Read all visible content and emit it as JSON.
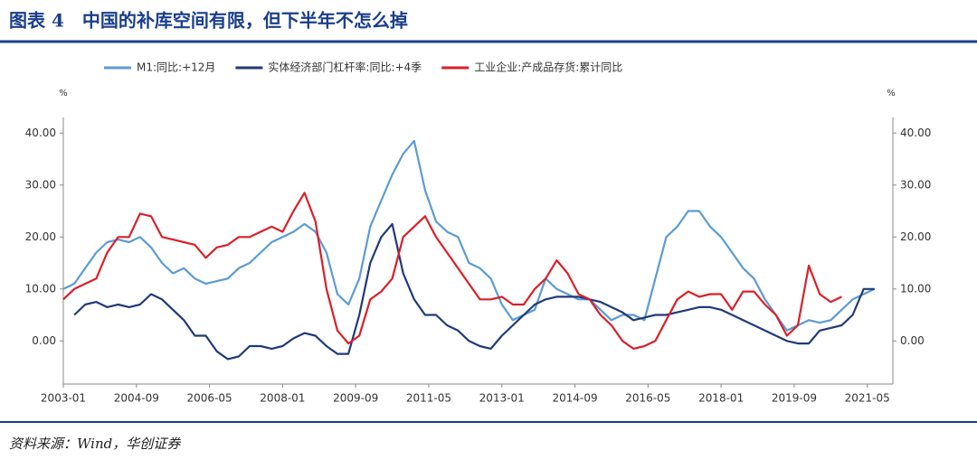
{
  "title": "图表 4　中国的补库空间有限，但下半年不怎么掉",
  "source": "资料来源：Wind，华创证券",
  "chart_data": {
    "type": "line",
    "y_unit": "%",
    "y2_unit": "%",
    "x": [
      "2003-01",
      "2003-04",
      "2003-07",
      "2003-10",
      "2004-01",
      "2004-04",
      "2004-07",
      "2004-10",
      "2005-01",
      "2005-04",
      "2005-07",
      "2005-10",
      "2006-01",
      "2006-04",
      "2006-07",
      "2006-10",
      "2007-01",
      "2007-04",
      "2007-07",
      "2007-10",
      "2008-01",
      "2008-04",
      "2008-07",
      "2008-10",
      "2009-01",
      "2009-04",
      "2009-07",
      "2009-10",
      "2010-01",
      "2010-04",
      "2010-07",
      "2010-10",
      "2011-01",
      "2011-04",
      "2011-07",
      "2011-10",
      "2012-01",
      "2012-04",
      "2012-07",
      "2012-10",
      "2013-01",
      "2013-04",
      "2013-07",
      "2013-10",
      "2014-01",
      "2014-04",
      "2014-07",
      "2014-10",
      "2015-01",
      "2015-04",
      "2015-07",
      "2015-10",
      "2016-01",
      "2016-04",
      "2016-07",
      "2016-10",
      "2017-01",
      "2017-04",
      "2017-07",
      "2017-10",
      "2018-01",
      "2018-04",
      "2018-07",
      "2018-10",
      "2019-01",
      "2019-04",
      "2019-07",
      "2019-10",
      "2020-01",
      "2020-04",
      "2020-07",
      "2020-10",
      "2021-01",
      "2021-04",
      "2021-07"
    ],
    "xlim": [
      "2003-01",
      "2021-12"
    ],
    "xticks": [
      "2003-01",
      "2004-09",
      "2006-05",
      "2008-01",
      "2009-09",
      "2011-05",
      "2013-01",
      "2014-09",
      "2016-05",
      "2018-01",
      "2019-09",
      "2021-05"
    ],
    "ylim": [
      -8.3,
      43
    ],
    "y2lim": [
      -8.3,
      43
    ],
    "yticks": [
      {
        "value": 0,
        "label": "0.00"
      },
      {
        "value": 10,
        "label": "10.00"
      },
      {
        "value": 20,
        "label": "20.00"
      },
      {
        "value": 30,
        "label": "30.00"
      },
      {
        "value": 40,
        "label": "40.00"
      }
    ],
    "y2ticks": [
      {
        "value": 0,
        "label": "0.00"
      },
      {
        "value": 10,
        "label": "10.00"
      },
      {
        "value": 20,
        "label": "20.00"
      },
      {
        "value": 30,
        "label": "30.00"
      },
      {
        "value": 40,
        "label": "40.00"
      }
    ],
    "grid": false,
    "legend": "top",
    "series": [
      {
        "name": "M1:同比:+12月",
        "color": "#5b9bd5",
        "values": [
          10,
          11,
          14,
          17,
          19,
          19.5,
          19,
          20,
          18,
          15,
          13,
          14,
          12,
          11,
          11.5,
          12,
          14,
          15,
          17,
          19,
          20,
          21,
          22.5,
          21,
          17,
          9,
          7,
          12,
          22,
          27,
          32,
          36,
          38.5,
          29,
          23,
          21,
          20,
          15,
          14,
          12,
          7,
          4,
          5,
          6,
          12,
          10,
          9,
          8,
          8,
          6,
          4,
          5,
          5,
          4,
          12,
          20,
          22,
          25,
          25,
          22,
          20,
          17,
          14,
          12,
          8,
          5,
          2,
          3,
          4,
          3.5,
          4,
          6,
          8,
          9,
          10
        ]
      },
      {
        "name": "实体经济部门杠杆率:同比:+4季",
        "color": "#1f3a7a",
        "values": [
          null,
          5,
          7,
          7.5,
          6.5,
          7,
          6.5,
          7,
          9,
          8,
          6,
          4,
          1,
          1,
          -2,
          -3.5,
          -3,
          -1,
          -1,
          -1.5,
          -1,
          0.5,
          1.5,
          1,
          -1,
          -2.5,
          -2.5,
          5,
          15,
          20,
          22.5,
          13,
          8,
          5,
          5,
          3,
          2,
          0,
          -1,
          -1.5,
          1,
          3,
          5,
          7,
          8,
          8.5,
          8.5,
          8.5,
          8,
          7.5,
          6.5,
          5.5,
          4,
          4.5,
          5,
          5,
          5.5,
          6,
          6.5,
          6.5,
          6,
          5,
          4,
          3,
          2,
          1,
          0,
          -0.5,
          -0.5,
          2,
          2.5,
          3,
          5,
          10,
          10
        ]
      },
      {
        "name": "工业企业:产成品存货:累计同比",
        "color": "#d9202a",
        "values": [
          8,
          10,
          11,
          12,
          17,
          20,
          20,
          24.5,
          24,
          20,
          19.5,
          19,
          18.5,
          16,
          18,
          18.5,
          20,
          20,
          21,
          22,
          21,
          25,
          28.5,
          23,
          10,
          2,
          -0.5,
          1,
          8,
          9.5,
          12,
          20,
          22,
          24,
          20,
          17,
          14,
          11,
          8,
          8,
          8.5,
          7,
          7,
          10,
          12,
          15.5,
          13,
          9,
          8,
          5,
          3,
          0,
          -1.5,
          -1,
          0,
          4,
          8,
          9.5,
          8.5,
          9,
          9,
          6,
          9.5,
          9.5,
          7,
          5,
          1,
          3,
          14.5,
          9,
          7.5,
          8.5,
          null,
          null,
          null
        ]
      }
    ]
  }
}
